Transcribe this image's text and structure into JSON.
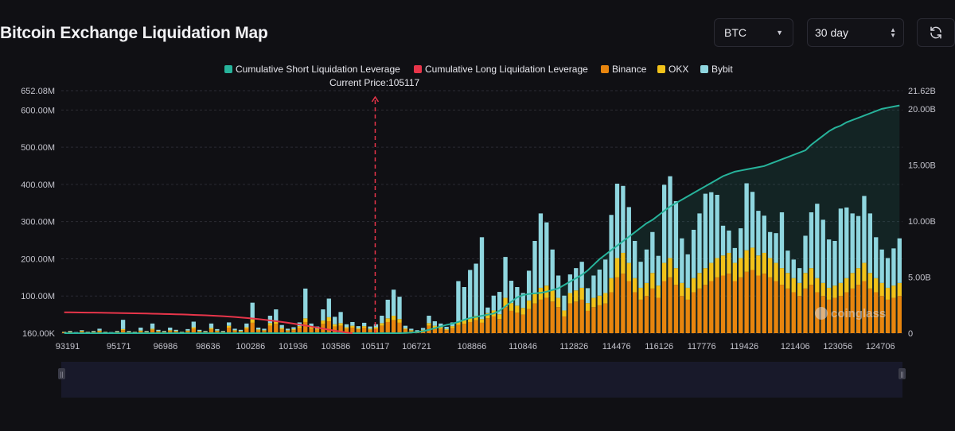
{
  "page": {
    "title": "Bitcoin Exchange Liquidation Map"
  },
  "controls": {
    "symbol": "BTC",
    "range": "30 day"
  },
  "colors": {
    "background": "#101014",
    "binance": "#e8850e",
    "okx": "#f2c21a",
    "bybit": "#8fd6df",
    "short_cum": "#27b39b",
    "long_cum": "#e8354a",
    "grid": "#2b2b33"
  },
  "chart_data": {
    "type": "bar",
    "title": "Bitcoin Exchange Liquidation Map",
    "current_price_label": "Current Price:105117",
    "current_price": 105117,
    "legend": [
      {
        "name": "Cumulative Short Liquidation Leverage",
        "color": "#27b39b"
      },
      {
        "name": "Cumulative Long Liquidation Leverage",
        "color": "#e8354a"
      },
      {
        "name": "Binance",
        "color": "#e8850e"
      },
      {
        "name": "OKX",
        "color": "#f2c21a"
      },
      {
        "name": "Bybit",
        "color": "#8fd6df"
      }
    ],
    "x_ticks": [
      "93191",
      "95171",
      "96986",
      "98636",
      "100286",
      "101936",
      "103586",
      "105117",
      "106721",
      "108866",
      "110846",
      "112826",
      "114476",
      "116126",
      "117776",
      "119426",
      "121406",
      "123056",
      "124706"
    ],
    "y_left": {
      "ticks": [
        {
          "v": 0,
          "label": "160.00K"
        },
        {
          "v": 100,
          "label": "100.00M"
        },
        {
          "v": 200,
          "label": "200.00M"
        },
        {
          "v": 300,
          "label": "300.00M"
        },
        {
          "v": 400,
          "label": "400.00M"
        },
        {
          "v": 500,
          "label": "500.00M"
        },
        {
          "v": 600,
          "label": "600.00M"
        },
        {
          "v": 652.08,
          "label": "652.08M"
        }
      ],
      "max": 652.08,
      "unit": "M"
    },
    "y_right": {
      "ticks": [
        {
          "v": 0,
          "label": "0"
        },
        {
          "v": 5,
          "label": "5.00B"
        },
        {
          "v": 10,
          "label": "10.00B"
        },
        {
          "v": 15,
          "label": "15.00B"
        },
        {
          "v": 20,
          "label": "20.00B"
        },
        {
          "v": 21.62,
          "label": "21.62B"
        }
      ],
      "max": 21.62,
      "unit": "B"
    },
    "bars": {
      "count": 143,
      "price_min": 93191,
      "price_max": 125810,
      "binance": [
        2,
        3,
        1,
        4,
        2,
        3,
        5,
        2,
        1,
        3,
        8,
        3,
        2,
        5,
        3,
        9,
        4,
        3,
        6,
        4,
        2,
        5,
        12,
        4,
        3,
        10,
        5,
        3,
        15,
        6,
        4,
        12,
        28,
        7,
        6,
        20,
        25,
        10,
        6,
        8,
        14,
        30,
        12,
        9,
        25,
        32,
        18,
        20,
        12,
        15,
        10,
        14,
        9,
        12,
        20,
        30,
        35,
        28,
        10,
        6,
        4,
        7,
        20,
        15,
        12,
        8,
        14,
        22,
        25,
        30,
        35,
        28,
        40,
        45,
        38,
        70,
        60,
        55,
        50,
        65,
        80,
        90,
        95,
        85,
        70,
        45,
        80,
        85,
        90,
        60,
        70,
        75,
        80,
        110,
        150,
        160,
        140,
        110,
        90,
        100,
        120,
        95,
        140,
        150,
        130,
        100,
        90,
        110,
        120,
        130,
        140,
        150,
        155,
        160,
        140,
        150,
        165,
        170,
        155,
        160,
        150,
        140,
        130,
        120,
        110,
        100,
        120,
        130,
        110,
        100,
        90,
        95,
        100,
        110,
        120,
        130,
        140,
        120,
        110,
        100,
        90,
        95,
        100
      ],
      "okx": [
        1,
        1,
        1,
        2,
        1,
        1,
        2,
        1,
        1,
        1,
        3,
        1,
        1,
        2,
        1,
        3,
        2,
        1,
        2,
        2,
        1,
        2,
        4,
        2,
        1,
        4,
        2,
        1,
        5,
        2,
        2,
        4,
        9,
        3,
        2,
        7,
        9,
        4,
        2,
        3,
        5,
        10,
        4,
        3,
        9,
        11,
        6,
        7,
        4,
        5,
        3,
        5,
        3,
        4,
        7,
        10,
        12,
        10,
        3,
        2,
        1,
        2,
        7,
        5,
        4,
        3,
        5,
        8,
        9,
        10,
        12,
        10,
        14,
        16,
        13,
        25,
        21,
        19,
        18,
        23,
        28,
        32,
        33,
        30,
        25,
        16,
        28,
        30,
        32,
        21,
        25,
        26,
        28,
        38,
        52,
        56,
        49,
        38,
        32,
        35,
        42,
        33,
        49,
        52,
        45,
        35,
        32,
        38,
        42,
        45,
        49,
        52,
        54,
        56,
        49,
        52,
        58,
        60,
        54,
        56,
        52,
        49,
        45,
        42,
        38,
        35,
        42,
        45,
        38,
        35,
        32,
        33,
        35,
        38,
        42,
        45,
        49,
        42,
        38,
        35,
        32,
        33,
        35
      ],
      "bybit": [
        1,
        2,
        1,
        2,
        1,
        2,
        5,
        1,
        1,
        2,
        25,
        2,
        1,
        8,
        2,
        14,
        3,
        2,
        7,
        3,
        1,
        4,
        15,
        3,
        2,
        12,
        4,
        2,
        9,
        4,
        3,
        10,
        45,
        5,
        4,
        20,
        30,
        8,
        4,
        5,
        10,
        80,
        10,
        6,
        30,
        50,
        20,
        30,
        8,
        10,
        6,
        9,
        6,
        8,
        20,
        50,
        70,
        60,
        7,
        4,
        3,
        5,
        20,
        12,
        10,
        6,
        10,
        110,
        90,
        130,
        140,
        220,
        15,
        40,
        60,
        110,
        60,
        50,
        40,
        80,
        140,
        200,
        170,
        110,
        60,
        40,
        50,
        60,
        70,
        40,
        60,
        70,
        90,
        170,
        200,
        180,
        150,
        100,
        70,
        90,
        110,
        80,
        210,
        220,
        180,
        120,
        90,
        130,
        160,
        200,
        190,
        170,
        80,
        60,
        40,
        80,
        180,
        150,
        120,
        100,
        70,
        80,
        150,
        60,
        50,
        40,
        100,
        150,
        200,
        170,
        130,
        120,
        200,
        190,
        160,
        140,
        180,
        160,
        110,
        90,
        80,
        100,
        120
      ]
    },
    "short_cumulative_B": [
      0,
      0,
      0,
      0,
      0,
      0,
      0,
      0,
      0,
      0,
      0,
      0,
      0,
      0,
      0,
      0,
      0,
      0,
      0,
      0,
      0,
      0,
      0,
      0,
      0,
      0,
      0,
      0,
      0,
      0,
      0,
      0,
      0,
      0,
      0,
      0,
      0,
      0,
      0,
      0,
      0,
      0,
      0,
      0,
      0,
      0,
      0,
      0,
      0,
      0,
      0,
      0,
      0,
      0,
      0,
      0,
      0,
      0,
      0.02,
      0.05,
      0.1,
      0.18,
      0.3,
      0.45,
      0.6,
      0.75,
      0.85,
      1.0,
      1.2,
      1.35,
      1.45,
      1.55,
      1.65,
      1.75,
      2.0,
      2.4,
      2.8,
      3.2,
      3.4,
      3.5,
      3.55,
      3.6,
      3.7,
      3.85,
      4.0,
      4.3,
      4.6,
      4.9,
      5.2,
      5.6,
      6.1,
      6.6,
      7.0,
      7.4,
      7.8,
      8.2,
      8.6,
      9.0,
      9.4,
      9.8,
      10.1,
      10.5,
      10.9,
      11.3,
      11.6,
      11.9,
      12.2,
      12.5,
      12.8,
      13.1,
      13.4,
      13.7,
      14.0,
      14.2,
      14.4,
      14.5,
      14.6,
      14.7,
      14.8,
      14.9,
      15.1,
      15.3,
      15.5,
      15.7,
      15.9,
      16.1,
      16.3,
      16.8,
      17.2,
      17.6,
      18.0,
      18.3,
      18.5,
      18.8,
      19.0,
      19.2,
      19.4,
      19.6,
      19.8,
      20.0,
      20.1,
      20.2,
      20.3
    ],
    "long_cumulative_M": [
      56,
      56,
      55.8,
      55.6,
      55.4,
      55.2,
      55.0,
      54.8,
      54.6,
      54.3,
      54.0,
      53.7,
      53.4,
      53.1,
      52.8,
      52.5,
      52.1,
      51.7,
      51.3,
      50.9,
      50.4,
      49.9,
      49.3,
      48.7,
      48.0,
      47.3,
      46.5,
      45.6,
      44.6,
      43.5,
      42.3,
      41.0,
      39.5,
      37.9,
      36.2,
      34.3,
      32.3,
      30.2,
      28.0,
      25.6,
      23.1,
      20.5,
      17.8,
      15.0,
      12.2,
      9.4,
      6.6,
      4.0,
      1.6,
      0
    ]
  }
}
